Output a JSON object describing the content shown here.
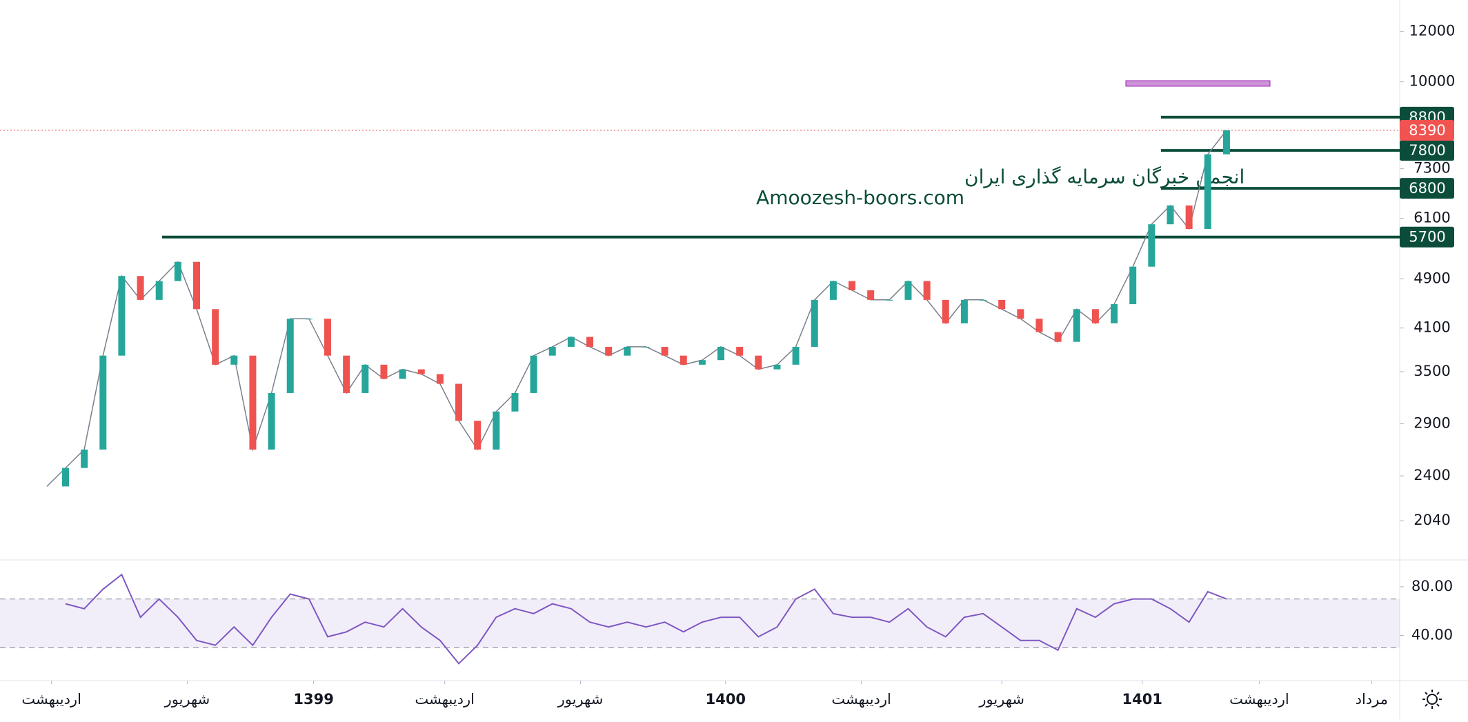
{
  "chart_data": [
    {
      "type": "line",
      "log": true,
      "color_up": "#26a69a",
      "color_down": "#ef5350",
      "line_color": "#7a7f8c",
      "x": [
        10,
        14,
        18,
        22,
        26,
        30,
        34,
        38,
        42,
        46,
        50,
        54,
        58,
        62,
        66,
        70,
        74,
        78,
        82,
        86,
        90,
        94,
        98,
        102,
        106,
        110,
        114,
        118,
        122,
        126,
        130,
        134,
        138,
        142,
        146,
        150,
        154,
        158,
        162,
        166,
        170,
        174,
        178,
        182,
        186,
        190,
        194,
        198,
        202,
        206,
        210,
        214,
        218,
        222,
        226,
        230,
        234,
        238,
        242,
        246,
        250,
        254,
        258,
        262
      ],
      "values": [
        2310,
        2470,
        2640,
        3710,
        4950,
        4540,
        4860,
        5210,
        4390,
        3590,
        3710,
        2640,
        3240,
        4240,
        4240,
        3710,
        3240,
        3590,
        3410,
        3530,
        3470,
        3350,
        2930,
        2640,
        3030,
        3240,
        3710,
        3830,
        3970,
        3830,
        3710,
        3830,
        3830,
        3710,
        3590,
        3650,
        3830,
        3710,
        3530,
        3590,
        3830,
        4540,
        4860,
        4700,
        4540,
        4540,
        4860,
        4540,
        4170,
        4540,
        4540,
        4390,
        4240,
        4040,
        3900,
        4390,
        4170,
        4470,
        5120,
        5970,
        6390,
        5870,
        7690,
        8390
      ],
      "xlim": [
        0,
        299
      ],
      "xticks": [
        {
          "value": 11,
          "label": "اردیبهشت"
        },
        {
          "value": 40,
          "label": "شهریور"
        },
        {
          "value": 67,
          "label": "1399"
        },
        {
          "value": 95,
          "label": "اردیبهشت"
        },
        {
          "value": 124,
          "label": "شهریور"
        },
        {
          "value": 155,
          "label": "1400"
        },
        {
          "value": 184,
          "label": "اردیبهشت"
        },
        {
          "value": 214,
          "label": "شهریور"
        },
        {
          "value": 244,
          "label": "1401"
        },
        {
          "value": 269,
          "label": "اردیبهشت"
        },
        {
          "value": 293,
          "label": "مرداد"
        }
      ],
      "ylim": [
        1770,
        13450
      ],
      "yticks": [
        12000,
        10000,
        7300,
        6100,
        4900,
        4100,
        3500,
        2900,
        2400,
        2040
      ],
      "levels": [
        8800,
        7800,
        6800,
        5700
      ],
      "level_color": "#0b4d3a",
      "last_price": 8390,
      "last_color": "#f05350"
    },
    {
      "type": "line",
      "color": "#7e57c2",
      "x": [
        10,
        14,
        18,
        22,
        26,
        30,
        34,
        38,
        42,
        46,
        50,
        54,
        58,
        62,
        66,
        70,
        74,
        78,
        82,
        86,
        90,
        94,
        98,
        102,
        106,
        110,
        114,
        118,
        122,
        126,
        130,
        134,
        138,
        142,
        146,
        150,
        154,
        158,
        162,
        166,
        170,
        174,
        178,
        182,
        186,
        190,
        194,
        198,
        202,
        206,
        210,
        214,
        218,
        222,
        226,
        230,
        234,
        238,
        242,
        246,
        250,
        254,
        258,
        262
      ],
      "values": [
        null,
        66,
        62,
        78,
        90,
        55,
        70,
        55,
        36,
        32,
        47,
        32,
        55,
        74,
        70,
        39,
        43,
        51,
        47,
        62,
        47,
        36,
        17,
        32,
        55,
        62,
        58,
        66,
        62,
        51,
        47,
        51,
        47,
        51,
        43,
        51,
        55,
        55,
        39,
        47,
        70,
        78,
        58,
        55,
        55,
        51,
        62,
        47,
        39,
        55,
        58,
        47,
        36,
        36,
        28,
        62,
        55,
        66,
        70,
        70,
        62,
        51,
        76,
        70
      ],
      "xlim": [
        0,
        299
      ],
      "ylim": [
        3,
        102
      ],
      "yticks": [
        {
          "value": 80,
          "label": "80.00"
        },
        {
          "value": 40,
          "label": "40.00"
        }
      ],
      "band": [
        30,
        70
      ]
    }
  ],
  "watermark": {
    "line1": "انجمن خبرگان سرمایه گذاری ایران",
    "line2": "Amoozesh-boors.com"
  }
}
